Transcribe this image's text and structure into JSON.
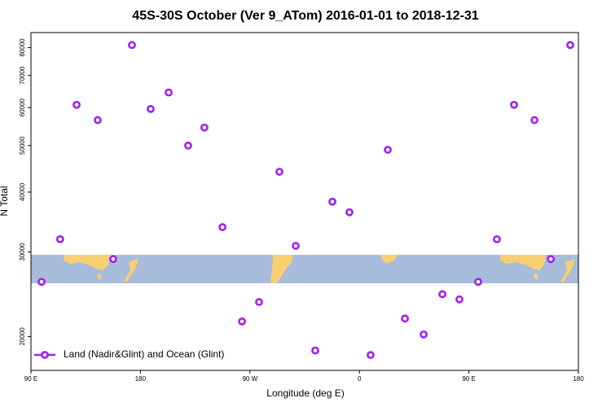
{
  "chart_data": {
    "type": "scatter",
    "title": "45S-30S October (Ver 9_ATom)   2016-01-01 to 2018-12-31",
    "x_label": "Longitude (deg E)",
    "y_label": "N Total",
    "log_y": true,
    "xlim": [
      90,
      540
    ],
    "ylim": [
      17000,
      86000
    ],
    "xticks": [
      {
        "value": 90,
        "label": "90 E"
      },
      180,
      {
        "value": 270,
        "label": "90 W"
      },
      {
        "value": 360,
        "label": "0"
      },
      {
        "value": 450,
        "label": "90 E"
      },
      {
        "value": 540,
        "label": "180"
      }
    ],
    "yticks": [
      20000,
      30000,
      40000,
      50000,
      60000,
      70000,
      80000
    ],
    "legend": "bottom-left",
    "series": [
      {
        "name": "Land (Nadir&Glint) and Ocean (Glint)",
        "color": "#a020f0",
        "x": [
          98.7,
          114,
          127.5,
          144.9,
          157.6,
          173,
          188.4,
          203.2,
          219.2,
          232.6,
          247.4,
          263.5,
          277.5,
          294.2,
          307.6,
          323.7,
          337.8,
          351.8,
          369.2,
          383.3,
          397.4,
          412.8,
          428.2,
          442.2,
          457.6,
          473,
          487.1,
          503.9,
          517.3,
          533.3
        ],
        "values": [
          26000,
          31900,
          60800,
          56500,
          29000,
          81000,
          59600,
          64500,
          50000,
          54500,
          33800,
          21500,
          23600,
          44100,
          30900,
          18700,
          38200,
          36300,
          18300,
          49000,
          21800,
          20200,
          24500,
          23900,
          26000,
          31900,
          60800,
          56500,
          29000,
          81000
        ]
      }
    ]
  }
}
